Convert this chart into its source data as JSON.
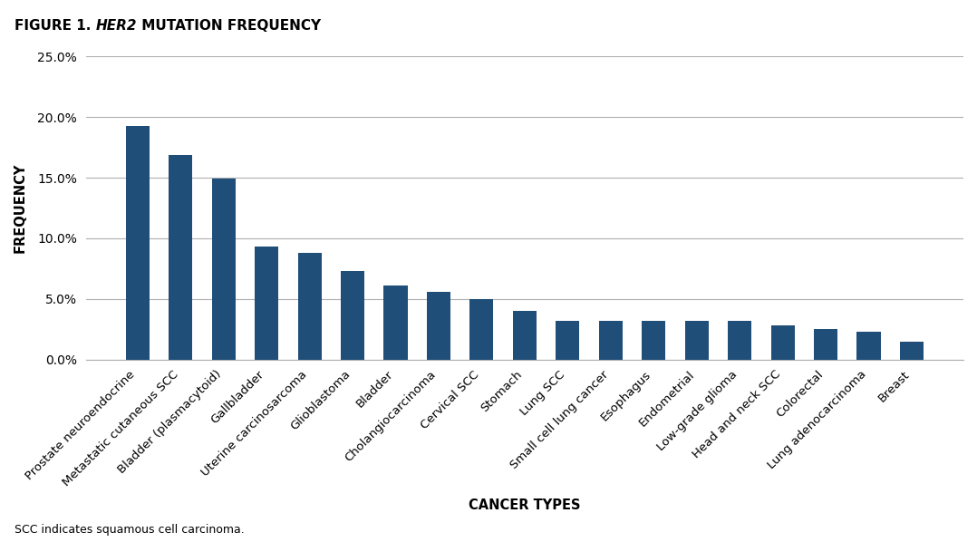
{
  "title_part1": "FIGURE 1. ",
  "title_italic": "HER2",
  "title_part2": " MUTATION FREQUENCY",
  "xlabel": "CANCER TYPES",
  "ylabel": "FREQUENCY",
  "footnote": "SCC indicates squamous cell carcinoma.",
  "categories": [
    "Prostate neuroendocrine",
    "Metastatic cutaneous SCC",
    "Bladder (plasmacytoid)",
    "Gallbladder",
    "Uterine carcinosarcoma",
    "Glioblastoma",
    "Bladder",
    "Cholangiocarcinoma",
    "Cervical SCC",
    "Stomach",
    "Lung SCC",
    "Small cell lung cancer",
    "Esophagus",
    "Endometrial",
    "Low-grade glioma",
    "Head and neck SCC",
    "Colorectal",
    "Lung adenocarcinoma",
    "Breast"
  ],
  "values": [
    19.3,
    16.9,
    14.9,
    9.3,
    8.8,
    7.3,
    6.1,
    5.6,
    5.0,
    4.0,
    3.2,
    3.2,
    3.2,
    3.2,
    3.2,
    2.8,
    2.5,
    2.3,
    1.5
  ],
  "bar_color": "#1f4e79",
  "background_color": "#ffffff",
  "ylim": [
    0,
    25
  ],
  "yticks": [
    0,
    5,
    10,
    15,
    20,
    25
  ],
  "ytick_labels": [
    "0.0%",
    "5.0%",
    "10.0%",
    "15.0%",
    "20.0%",
    "25.0%"
  ],
  "grid_color": "#b0b0b0",
  "tick_label_fontsize": 10,
  "axis_label_fontsize": 10.5,
  "title_fontsize": 11,
  "footnote_fontsize": 9
}
